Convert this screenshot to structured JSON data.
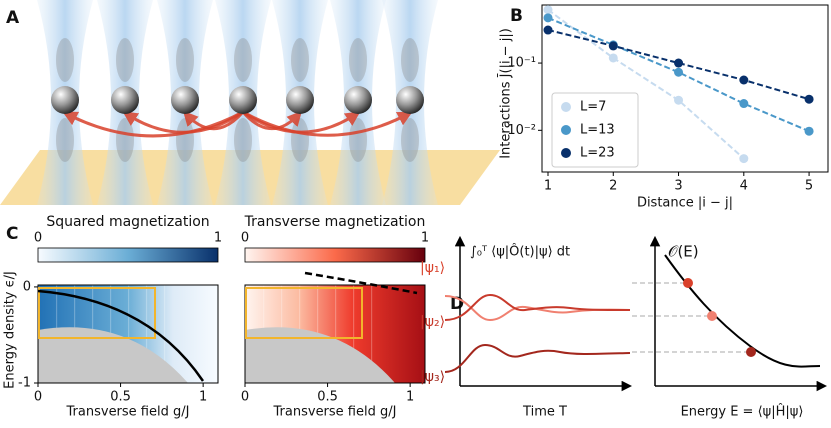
{
  "panel_labels": [
    "A",
    "B",
    "C",
    "D"
  ],
  "chart_data": [
    {
      "type": "scatter",
      "xlabel": "Distance |i − j|",
      "ylabel": "Interactions J̄(|i − j|)",
      "x": [
        1,
        2,
        3,
        4,
        5
      ],
      "series": [
        {
          "name": "L=7",
          "color": "#c6dbef",
          "values": [
            0.62,
            0.119,
            0.028,
            0.0038,
            null
          ]
        },
        {
          "name": "L=13",
          "color": "#4a98c9",
          "values": [
            0.47,
            0.186,
            0.073,
            0.025,
            0.0097
          ]
        },
        {
          "name": "L=23",
          "color": "#08306b",
          "values": [
            0.31,
            0.18,
            0.1,
            0.056,
            0.029
          ]
        }
      ],
      "xlim": [
        0.908,
        5.29
      ],
      "ylim": [
        0.0024,
        0.73
      ],
      "log_y": true,
      "xticks": [
        1,
        2,
        3,
        4,
        5
      ],
      "yticks": [
        {
          "value": 0.01,
          "label": "10⁻²"
        },
        {
          "value": 0.1,
          "label": "10⁻¹"
        }
      ],
      "legend": "lower left"
    }
  ],
  "panel_c": {
    "titles": [
      "Squared magnetization",
      "Transverse magnetization"
    ],
    "colorbar_ticks": [
      0,
      1
    ],
    "xlabel": "Transverse field g/J",
    "ylabel": "Energy density ϵ/J",
    "xticks": [
      0,
      0.5,
      1
    ],
    "yticks": [
      0,
      -1
    ]
  },
  "panel_d": {
    "formula": "∫₀ᵀ ⟨ψ|Ô(t)|ψ⟩ dt",
    "observable": "𝒪(E)",
    "states": [
      "|ψ₁⟩",
      "|ψ₂⟩",
      "|ψ₃⟩"
    ],
    "xlabel_left": "Time T",
    "xlabel_right": "Energy E = ⟨ψ|Ĥ|ψ⟩"
  }
}
